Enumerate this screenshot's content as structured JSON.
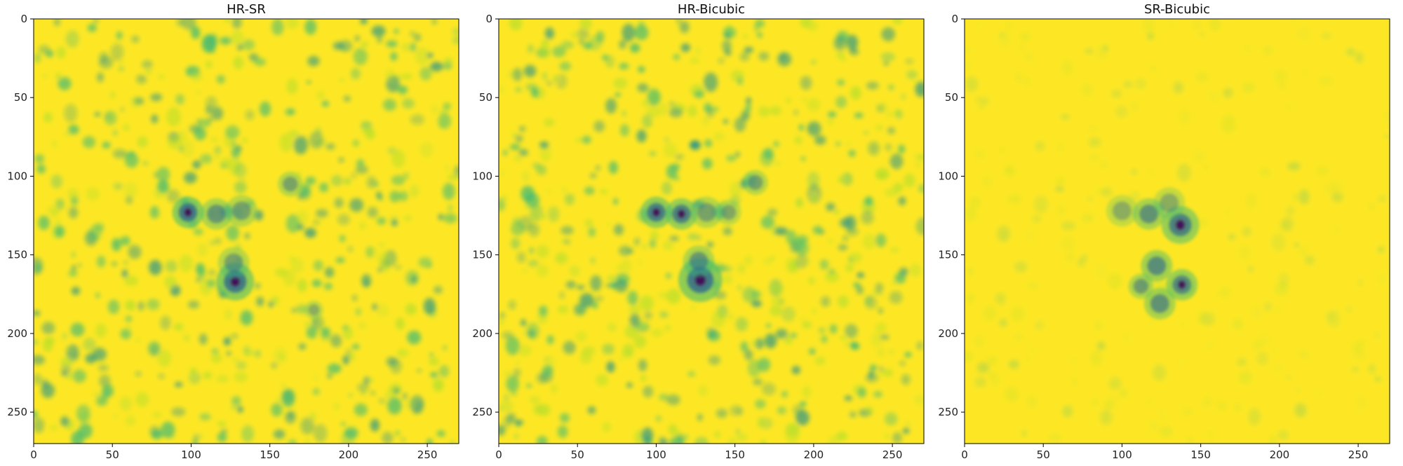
{
  "figure": {
    "colormap": "viridis",
    "background": "#ffffff",
    "colors": {
      "high": "#fde725",
      "mid_high": "#b5de2b",
      "mid": "#35b779",
      "mid_low": "#21918c",
      "low": "#31688e",
      "lowest": "#440154"
    }
  },
  "chart_data": [
    {
      "type": "heatmap",
      "title": "HR-SR",
      "xlabel": "",
      "ylabel": "",
      "xlim": [
        0,
        270
      ],
      "ylim": [
        270,
        0
      ],
      "xticks": [
        0,
        50,
        100,
        150,
        200,
        250
      ],
      "yticks": [
        0,
        50,
        100,
        150,
        200,
        250
      ],
      "grid": false,
      "noise_level": 0.5,
      "features": [
        {
          "x": 98,
          "y": 123,
          "intensity": 1.0,
          "radius": 5
        },
        {
          "x": 116,
          "y": 124,
          "intensity": 0.7,
          "radius": 5
        },
        {
          "x": 132,
          "y": 122,
          "intensity": 0.6,
          "radius": 5
        },
        {
          "x": 128,
          "y": 167,
          "intensity": 1.0,
          "radius": 6
        },
        {
          "x": 127,
          "y": 155,
          "intensity": 0.6,
          "radius": 5
        },
        {
          "x": 163,
          "y": 105,
          "intensity": 0.6,
          "radius": 4
        },
        {
          "x": 178,
          "y": 185,
          "intensity": 0.5,
          "radius": 3
        }
      ]
    },
    {
      "type": "heatmap",
      "title": "HR-Bicubic",
      "xlabel": "",
      "ylabel": "",
      "xlim": [
        0,
        270
      ],
      "ylim": [
        270,
        0
      ],
      "xticks": [
        0,
        50,
        100,
        150,
        200,
        250
      ],
      "yticks": [
        0,
        50,
        100,
        150,
        200,
        250
      ],
      "grid": false,
      "noise_level": 0.52,
      "features": [
        {
          "x": 100,
          "y": 123,
          "intensity": 0.95,
          "radius": 5
        },
        {
          "x": 116,
          "y": 124,
          "intensity": 0.9,
          "radius": 5
        },
        {
          "x": 132,
          "y": 123,
          "intensity": 0.6,
          "radius": 5
        },
        {
          "x": 146,
          "y": 123,
          "intensity": 0.55,
          "radius": 4
        },
        {
          "x": 128,
          "y": 166,
          "intensity": 1.0,
          "radius": 7
        },
        {
          "x": 127,
          "y": 154,
          "intensity": 0.7,
          "radius": 5
        },
        {
          "x": 163,
          "y": 104,
          "intensity": 0.6,
          "radius": 4
        }
      ]
    },
    {
      "type": "heatmap",
      "title": "SR-Bicubic",
      "xlabel": "",
      "ylabel": "",
      "xlim": [
        0,
        270
      ],
      "ylim": [
        270,
        0
      ],
      "xticks": [
        0,
        50,
        100,
        150,
        200,
        250
      ],
      "yticks": [
        0,
        50,
        100,
        150,
        200,
        250
      ],
      "grid": false,
      "noise_level": 0.18,
      "features": [
        {
          "x": 100,
          "y": 122,
          "intensity": 0.5,
          "radius": 5
        },
        {
          "x": 117,
          "y": 124,
          "intensity": 0.75,
          "radius": 5
        },
        {
          "x": 137,
          "y": 131,
          "intensity": 0.9,
          "radius": 6
        },
        {
          "x": 130,
          "y": 117,
          "intensity": 0.5,
          "radius": 5
        },
        {
          "x": 122,
          "y": 157,
          "intensity": 0.8,
          "radius": 5
        },
        {
          "x": 138,
          "y": 169,
          "intensity": 0.85,
          "radius": 5
        },
        {
          "x": 124,
          "y": 181,
          "intensity": 0.75,
          "radius": 5
        },
        {
          "x": 112,
          "y": 170,
          "intensity": 0.65,
          "radius": 4
        }
      ]
    }
  ]
}
